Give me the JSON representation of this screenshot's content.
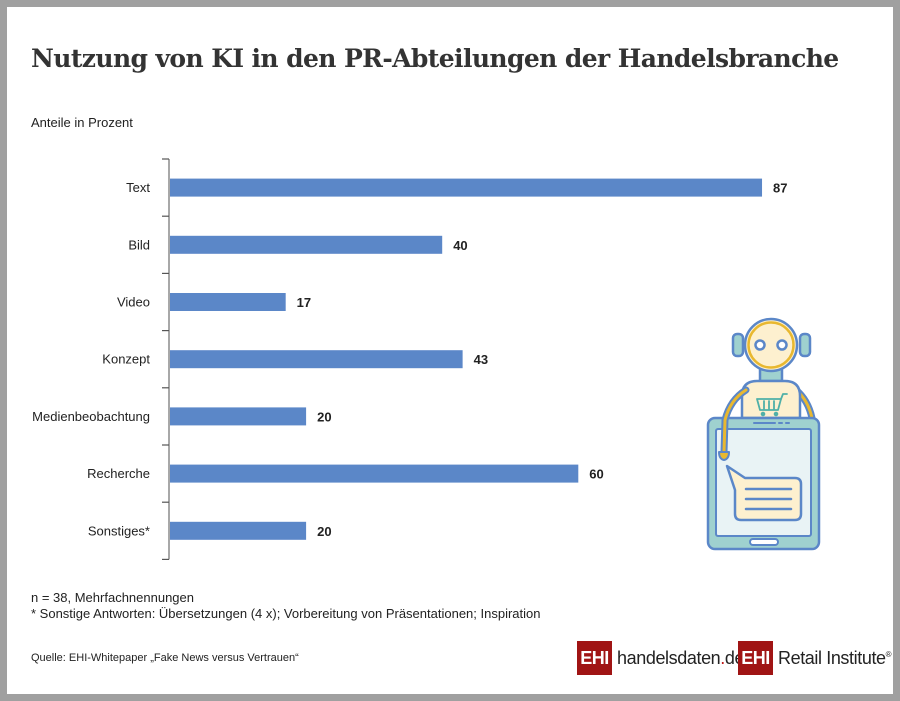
{
  "title": "Nutzung von KI in den PR-Abteilungen der Handelsbranche",
  "subtitle": "Anteile in Prozent",
  "chart_data": {
    "type": "bar",
    "orientation": "horizontal",
    "title": "Nutzung von KI in den PR-Abteilungen der Handelsbranche",
    "subtitle": "Anteile in Prozent",
    "xlabel": "",
    "ylabel": "",
    "categories": [
      "Text",
      "Bild",
      "Video",
      "Konzept",
      "Medienbeobachtung",
      "Recherche",
      "Sonstiges*"
    ],
    "values": [
      87,
      40,
      17,
      43,
      20,
      60,
      20
    ],
    "value_labels": [
      "87",
      "40",
      "17",
      "43",
      "20",
      "60",
      "20"
    ],
    "xlim": [
      0,
      100
    ],
    "grid": false,
    "bar_color": "#5b87c8"
  },
  "notes": {
    "sample": "n = 38, Mehrfachnennungen",
    "footnote": "* Sonstige Antworten: Übersetzungen (4 x); Vorbereitung von Präsentationen; Inspiration"
  },
  "source": "Quelle: EHI-Whitepaper „Fake News versus Vertrauen“",
  "logos": {
    "handelsdaten": {
      "box": "EHI",
      "name": "handelsdaten",
      "dot": ".",
      "tld": "de"
    },
    "retail": {
      "box": "EHI",
      "name": "Retail Institute",
      "reg": "®"
    }
  },
  "colors": {
    "brand_red": "#a01414",
    "bar": "#5b87c8",
    "robot_outline": "#5b87c8",
    "robot_accent": "#e8b830",
    "robot_fill": "#fdf0cf",
    "tablet_fill": "#9fd1cf",
    "screen_fill": "#e9f3f5"
  }
}
